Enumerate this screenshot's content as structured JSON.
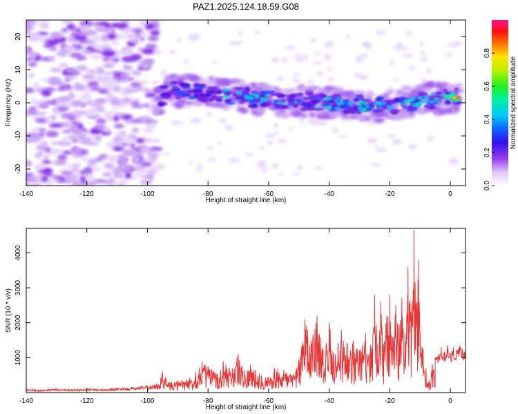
{
  "title": "PAZ1.2025.124.18.59.G08",
  "colors": {
    "snr_line": "#ee3333",
    "spectrogram_low": "#c8a8f0",
    "spectrogram_mid": "#7a22e6",
    "frame": "#000000"
  },
  "chart_data": [
    {
      "type": "heatmap",
      "title": "",
      "xlabel": "Height of straight line (km)",
      "ylabel": "Frequency (Hz)",
      "xlim": [
        -140,
        5
      ],
      "ylim": [
        -25,
        25
      ],
      "x_ticks": [
        -140,
        -120,
        -100,
        -80,
        -60,
        -40,
        -20,
        0
      ],
      "y_ticks": [
        -20,
        -10,
        0,
        10,
        20
      ],
      "colorbar": {
        "label": "Normalized spectral amplitude",
        "range": [
          0,
          1
        ],
        "ticks": [
          "0.0",
          "0.2",
          "0.4",
          "0.6",
          "0.8"
        ],
        "colormap": "rainbow (white-violet-blue-cyan-green-yellow-red-magenta)"
      },
      "description_of_structure": {
        "noise_region_km": [
          -140,
          -97
        ],
        "signal_band_centre_hz_by_height": [
          {
            "x": -95,
            "y": 4
          },
          {
            "x": -80,
            "y": 3
          },
          {
            "x": -60,
            "y": 1
          },
          {
            "x": -40,
            "y": 0
          },
          {
            "x": -20,
            "y": -1
          },
          {
            "x": 0,
            "y": 2
          },
          {
            "x": 3,
            "y": 1.5
          }
        ],
        "peak_amplitude_location": {
          "x": 2,
          "y": 1.5,
          "value": 0.95
        }
      }
    },
    {
      "type": "line",
      "title": "",
      "xlabel": "Height of straight line (km)",
      "ylabel": "SNR (10 * v/v)",
      "xlim": [
        -140,
        5
      ],
      "ylim": [
        0,
        4700
      ],
      "x_ticks": [
        -140,
        -120,
        -100,
        -80,
        -60,
        -40,
        -20,
        0
      ],
      "y_ticks": [
        1000,
        2000,
        3000,
        4000
      ],
      "series": [
        {
          "x": [
            -140,
            -135,
            -130,
            -125,
            -120,
            -115,
            -110,
            -105,
            -100,
            -97,
            -95,
            -94,
            -93,
            -90,
            -86,
            -84,
            -82,
            -80,
            -77,
            -75,
            -72,
            -70,
            -68,
            -66,
            -63,
            -60,
            -58,
            -55,
            -52,
            -50,
            -48,
            -46,
            -44,
            -42,
            -40,
            -38,
            -36,
            -34,
            -32,
            -30,
            -28,
            -26,
            -25,
            -24,
            -23,
            -22,
            -21,
            -20,
            -19,
            -18,
            -17,
            -16,
            -15,
            -14,
            -13,
            -12,
            -11,
            -10.5,
            -10,
            -9,
            -8,
            -7,
            -6,
            -5,
            -4,
            -3,
            -2,
            -1,
            0,
            1,
            2,
            3,
            4,
            5
          ],
          "y": [
            100,
            80,
            110,
            90,
            120,
            100,
            130,
            150,
            200,
            250,
            600,
            450,
            300,
            350,
            400,
            600,
            900,
            750,
            550,
            900,
            700,
            1100,
            650,
            800,
            550,
            450,
            700,
            650,
            500,
            950,
            2100,
            1500,
            2200,
            1200,
            2000,
            1100,
            1800,
            1400,
            1500,
            1200,
            1700,
            1300,
            2800,
            1400,
            2600,
            1400,
            2200,
            2800,
            1600,
            2500,
            1900,
            2700,
            1700,
            3600,
            2300,
            4650,
            2600,
            3800,
            1700,
            1200,
            700,
            350,
            800,
            1000,
            1100,
            1300,
            1150,
            1350,
            1100,
            1300,
            1200,
            1350,
            1250,
            1150
          ]
        }
      ]
    }
  ]
}
